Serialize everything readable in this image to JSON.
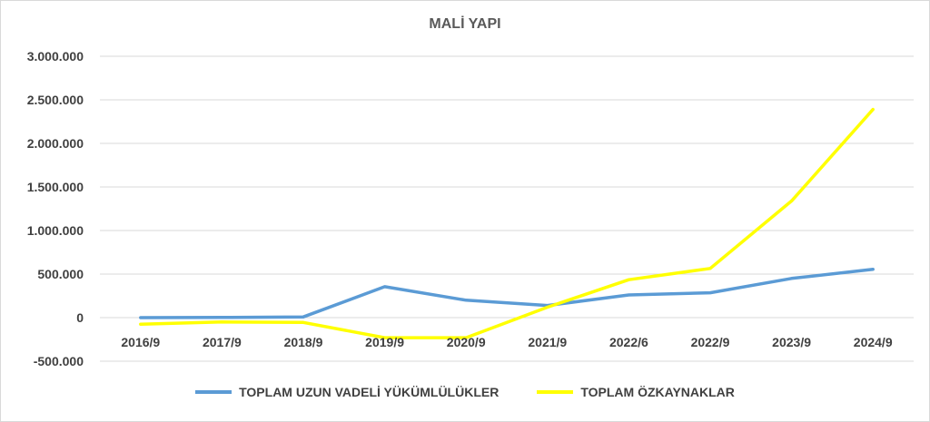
{
  "chart_data": {
    "type": "line",
    "title": "MALİ YAPI",
    "categories": [
      "2016/9",
      "2017/9",
      "2018/9",
      "2019/9",
      "2020/9",
      "2021/9",
      "2022/6",
      "2022/9",
      "2023/9",
      "2024/9"
    ],
    "series": [
      {
        "name": "TOPLAM UZUN VADELİ YÜKÜMLÜLÜKLER",
        "color": "#5b9bd5",
        "values": [
          0,
          2000,
          8000,
          355000,
          200000,
          140000,
          260000,
          285000,
          450000,
          555000
        ]
      },
      {
        "name": "TOPLAM ÖZKAYNAKLAR",
        "color": "#ffff00",
        "values": [
          -75000,
          -50000,
          -55000,
          -230000,
          -230000,
          120000,
          435000,
          565000,
          1340000,
          2390000
        ]
      }
    ],
    "ylim": [
      -500000,
      3000000
    ],
    "yticks": [
      -500000,
      0,
      500000,
      1000000,
      1500000,
      2000000,
      2500000,
      3000000
    ],
    "ytick_labels": [
      "-500.000",
      "0",
      "500.000",
      "1.000.000",
      "1.500.000",
      "2.000.000",
      "2.500.000",
      "3.000.000"
    ],
    "grid": true,
    "legend": "bottom"
  }
}
